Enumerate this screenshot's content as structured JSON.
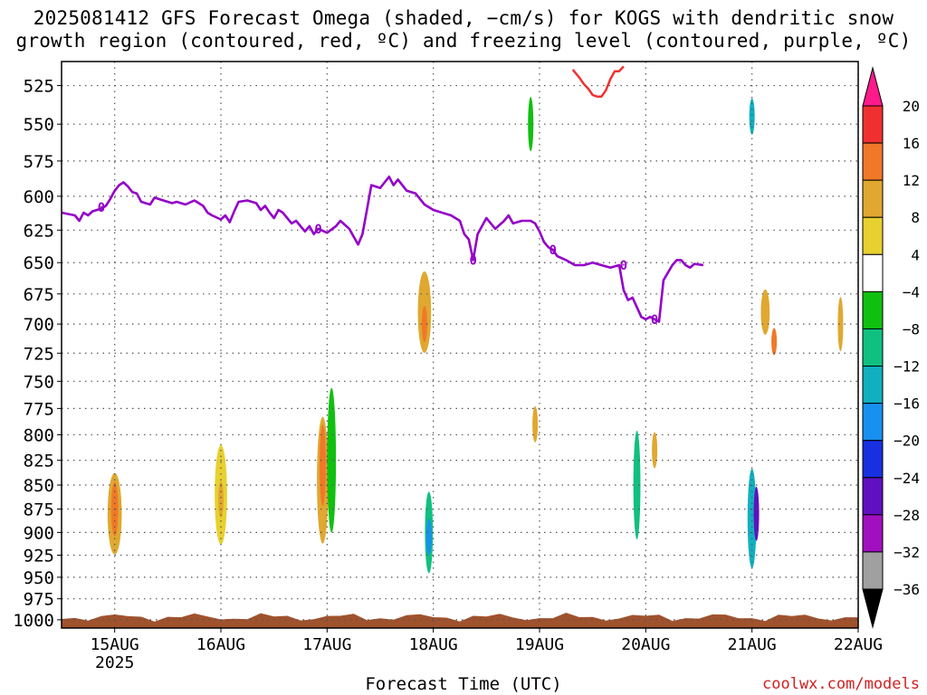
{
  "title_line1": "2025081412 GFS Forecast Omega (shaded, −cm/s) for KOGS with dendritic snow",
  "title_line2": "growth region (contoured, red, ºC) and freezing level (contoured, purple, ºC)",
  "credit": "coolwx.com/models",
  "colors": {
    "freezing_level": "#9400c8",
    "dendritic": "#f03030",
    "terrain": "#a0522d",
    "grid": "#555555",
    "frame": "#000000"
  },
  "chart_data": {
    "type": "heatmap",
    "xlabel": "Forecast Time (UTC)",
    "ylabel": "",
    "x_ticks": [
      {
        "label": "15AUG",
        "sub": "2025",
        "hour": 12
      },
      {
        "label": "16AUG",
        "sub": "",
        "hour": 36
      },
      {
        "label": "17AUG",
        "sub": "",
        "hour": 60
      },
      {
        "label": "18AUG",
        "sub": "",
        "hour": 84
      },
      {
        "label": "19AUG",
        "sub": "",
        "hour": 108
      },
      {
        "label": "20AUG",
        "sub": "",
        "hour": 132
      },
      {
        "label": "21AUG",
        "sub": "",
        "hour": 156
      },
      {
        "label": "22AUG",
        "sub": "",
        "hour": 180
      }
    ],
    "xlim": [
      0,
      180
    ],
    "y_ticks": [
      525,
      550,
      575,
      600,
      625,
      650,
      675,
      700,
      725,
      750,
      775,
      800,
      825,
      850,
      875,
      900,
      925,
      950,
      975,
      1000
    ],
    "ylim": [
      510,
      1010
    ],
    "y_scale": "log-pressure",
    "grid": true,
    "colorbar": {
      "labels": [
        "20",
        "16",
        "12",
        "8",
        "4",
        "−4",
        "−8",
        "−12",
        "−16",
        "−20",
        "−24",
        "−28",
        "−32",
        "−36"
      ],
      "colors": [
        "#ff1a8c",
        "#f03030",
        "#f07828",
        "#e0a830",
        "#e8d030",
        "#ffffff",
        "#10c010",
        "#10c080",
        "#10b0c0",
        "#1890f0",
        "#1830e0",
        "#6010c0",
        "#a010c0",
        "#a0a0a0",
        "#000000"
      ]
    },
    "freezing_level": {
      "label": "0",
      "points": [
        [
          0,
          612
        ],
        [
          3,
          614
        ],
        [
          4,
          618
        ],
        [
          5,
          612
        ],
        [
          6,
          614
        ],
        [
          7,
          611
        ],
        [
          9,
          609
        ],
        [
          10,
          607
        ],
        [
          11,
          602
        ],
        [
          12,
          596
        ],
        [
          13,
          592
        ],
        [
          14,
          590
        ],
        [
          15,
          593
        ],
        [
          16,
          597
        ],
        [
          17,
          598
        ],
        [
          18,
          604
        ],
        [
          20,
          606
        ],
        [
          21,
          601
        ],
        [
          23,
          603
        ],
        [
          25,
          605
        ],
        [
          26,
          604
        ],
        [
          28,
          606
        ],
        [
          30,
          603
        ],
        [
          32,
          607
        ],
        [
          33,
          612
        ],
        [
          34,
          614
        ],
        [
          36,
          617
        ],
        [
          37,
          614
        ],
        [
          38,
          619
        ],
        [
          39,
          611
        ],
        [
          40,
          604
        ],
        [
          42,
          603
        ],
        [
          44,
          605
        ],
        [
          45,
          610
        ],
        [
          46,
          607
        ],
        [
          47,
          612
        ],
        [
          48,
          616
        ],
        [
          49,
          610
        ],
        [
          50,
          612
        ],
        [
          52,
          620
        ],
        [
          53,
          618
        ],
        [
          55,
          626
        ],
        [
          56,
          622
        ],
        [
          57,
          628
        ],
        [
          58,
          624
        ],
        [
          60,
          627
        ],
        [
          62,
          622
        ],
        [
          63,
          618
        ],
        [
          65,
          624
        ],
        [
          67,
          636
        ],
        [
          68,
          628
        ],
        [
          69,
          610
        ],
        [
          70,
          592
        ],
        [
          72,
          594
        ],
        [
          73,
          590
        ],
        [
          74,
          586
        ],
        [
          75,
          592
        ],
        [
          76,
          588
        ],
        [
          78,
          596
        ],
        [
          80,
          598
        ],
        [
          82,
          606
        ],
        [
          84,
          610
        ],
        [
          86,
          612
        ],
        [
          88,
          614
        ],
        [
          90,
          618
        ],
        [
          91,
          628
        ],
        [
          92,
          632
        ],
        [
          93,
          648
        ],
        [
          94,
          628
        ],
        [
          96,
          616
        ],
        [
          97,
          620
        ],
        [
          98,
          624
        ],
        [
          100,
          618
        ],
        [
          101,
          614
        ],
        [
          102,
          620
        ],
        [
          104,
          618
        ],
        [
          106,
          618
        ],
        [
          107,
          620
        ],
        [
          108,
          626
        ],
        [
          109,
          634
        ],
        [
          110,
          638
        ],
        [
          111,
          640
        ],
        [
          112,
          645
        ],
        [
          114,
          648
        ],
        [
          116,
          652
        ],
        [
          118,
          652
        ],
        [
          120,
          650
        ],
        [
          122,
          652
        ],
        [
          124,
          654
        ],
        [
          126,
          652
        ],
        [
          127,
          672
        ],
        [
          128,
          680
        ],
        [
          129,
          678
        ],
        [
          130,
          686
        ],
        [
          131,
          694
        ],
        [
          132,
          696
        ],
        [
          133,
          694
        ],
        [
          134,
          696
        ],
        [
          135,
          698
        ],
        [
          136,
          664
        ],
        [
          138,
          652
        ],
        [
          139,
          648
        ],
        [
          140,
          648
        ],
        [
          141,
          652
        ],
        [
          142,
          654
        ],
        [
          143,
          651
        ],
        [
          145,
          652
        ]
      ]
    },
    "dendritic_region": {
      "points": [
        [
          115.5,
          515
        ],
        [
          117,
          520
        ],
        [
          118,
          524
        ],
        [
          119,
          527
        ],
        [
          120,
          531
        ],
        [
          121,
          532
        ],
        [
          122,
          532
        ],
        [
          123,
          528
        ],
        [
          124,
          521
        ],
        [
          125,
          516
        ],
        [
          126,
          516
        ],
        [
          127,
          513
        ]
      ]
    },
    "omega_features": [
      {
        "hour": 12,
        "p": 880,
        "hw": 1.6,
        "vh": 90,
        "value": 8
      },
      {
        "hour": 12,
        "p": 875,
        "hw": 0.8,
        "vh": 60,
        "value": 12
      },
      {
        "hour": 36,
        "p": 860,
        "hw": 1.4,
        "vh": 110,
        "value": 6
      },
      {
        "hour": 36,
        "p": 865,
        "hw": 0.6,
        "vh": 40,
        "value": 10
      },
      {
        "hour": 59,
        "p": 845,
        "hw": 1.3,
        "vh": 140,
        "value": 8
      },
      {
        "hour": 59,
        "p": 830,
        "hw": 0.7,
        "vh": 90,
        "value": 12
      },
      {
        "hour": 61,
        "p": 825,
        "hw": 1.0,
        "vh": 160,
        "value": -8
      },
      {
        "hour": 82,
        "p": 690,
        "hw": 1.5,
        "vh": 90,
        "value": 8
      },
      {
        "hour": 82,
        "p": 700,
        "hw": 0.6,
        "vh": 40,
        "value": 12
      },
      {
        "hour": 83,
        "p": 900,
        "hw": 0.9,
        "vh": 90,
        "value": -12
      },
      {
        "hour": 83,
        "p": 905,
        "hw": 0.4,
        "vh": 40,
        "value": -20
      },
      {
        "hour": 106,
        "p": 550,
        "hw": 0.6,
        "vh": 60,
        "value": -8
      },
      {
        "hour": 107,
        "p": 790,
        "hw": 0.5,
        "vh": 40,
        "value": 8
      },
      {
        "hour": 130,
        "p": 850,
        "hw": 0.8,
        "vh": 120,
        "value": -12
      },
      {
        "hour": 134,
        "p": 815,
        "hw": 0.6,
        "vh": 40,
        "value": 8
      },
      {
        "hour": 156,
        "p": 885,
        "hw": 1.0,
        "vh": 110,
        "value": -16
      },
      {
        "hour": 157,
        "p": 880,
        "hw": 0.6,
        "vh": 60,
        "value": -28
      },
      {
        "hour": 156,
        "p": 545,
        "hw": 0.5,
        "vh": 40,
        "value": -16
      },
      {
        "hour": 159,
        "p": 690,
        "hw": 1.0,
        "vh": 50,
        "value": 8
      },
      {
        "hour": 161,
        "p": 715,
        "hw": 0.4,
        "vh": 30,
        "value": 12
      },
      {
        "hour": 176,
        "p": 700,
        "hw": 0.5,
        "vh": 60,
        "value": 8
      }
    ]
  }
}
